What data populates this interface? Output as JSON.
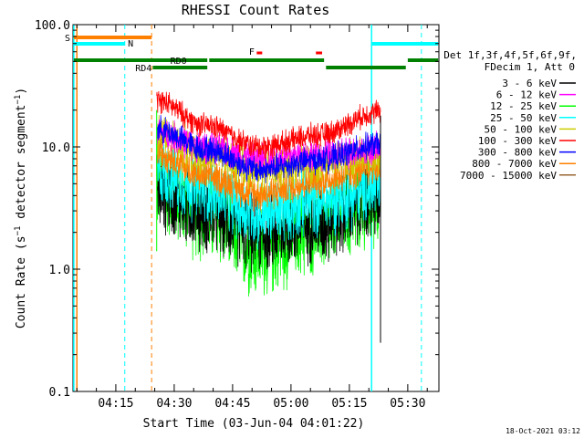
{
  "chart_data": {
    "type": "line",
    "title": "RHESSI Count Rates",
    "xlabel": "Start Time (03-Jun-04 04:01:22)",
    "ylabel": "Count Rate (s^-1 detector segment^-1)",
    "ylabel_parts": {
      "a": "Count Rate (s",
      "sup1": "−1",
      "b": " detector segment",
      "sup2": "−1",
      "c": ")"
    },
    "y_scale": "log",
    "ylim": [
      0.1,
      100
    ],
    "xlim_minutes": [
      4.0,
      98.0
    ],
    "x_ticks": [
      {
        "label": "04:15",
        "minute": 15
      },
      {
        "label": "04:30",
        "minute": 30
      },
      {
        "label": "04:45",
        "minute": 45
      },
      {
        "label": "05:00",
        "minute": 60
      },
      {
        "label": "05:15",
        "minute": 75
      },
      {
        "label": "05:30",
        "minute": 90
      }
    ],
    "y_ticks": [
      {
        "label": "100.0",
        "value": 100
      },
      {
        "label": "10.0",
        "value": 10
      },
      {
        "label": "1.0",
        "value": 1
      },
      {
        "label": "0.1",
        "value": 0.1
      }
    ],
    "legend_header": [
      "Det 1f,3f,4f,5f,6f,9f,",
      "FDecim 1, Att 0"
    ],
    "series": [
      {
        "name": "3 - 6 keV",
        "color": "#000000",
        "level": [
          4.3,
          2.9,
          2.0,
          2.4,
          3.7
        ]
      },
      {
        "name": "6 - 12 keV",
        "color": "#ff00ff",
        "level": [
          13.0,
          10.0,
          8.0,
          8.7,
          9.5
        ]
      },
      {
        "name": "12 - 25 keV",
        "color": "#00ff00",
        "level": [
          4.8,
          2.8,
          1.4,
          2.2,
          3.8
        ]
      },
      {
        "name": "25 - 50 keV",
        "color": "#00ffff",
        "level": [
          6.2,
          4.4,
          2.8,
          3.6,
          4.6
        ]
      },
      {
        "name": "50 - 100 keV",
        "color": "#cccc00",
        "level": [
          13.0,
          8.6,
          6.5,
          7.4,
          8.8
        ]
      },
      {
        "name": "100 - 300 keV",
        "color": "#ff0000",
        "level": [
          24.0,
          15.0,
          10.0,
          12.5,
          19.5
        ]
      },
      {
        "name": "300 - 800 keV",
        "color": "#0000ff",
        "level": [
          14.0,
          9.6,
          6.5,
          7.8,
          10.5
        ]
      },
      {
        "name": "800 - 7000 keV",
        "color": "#ff8000",
        "level": [
          9.2,
          5.8,
          4.2,
          5.3,
          6.8
        ]
      },
      {
        "name": "7000 - 15000 keV",
        "color": "#996633",
        "level": []
      }
    ],
    "data_interval_minutes": [
      25.5,
      83.0
    ],
    "flag_bars": [
      {
        "label": "S",
        "color": "#ff8000"
      },
      {
        "label": "N",
        "color": "#00ffff"
      },
      {
        "label": "RD0",
        "color": "#008000"
      },
      {
        "label": "RD4",
        "color": "#008000"
      },
      {
        "label": "F",
        "color": "#ff0000"
      }
    ]
  },
  "footer_timestamp": "18-Oct-2021 03:12"
}
